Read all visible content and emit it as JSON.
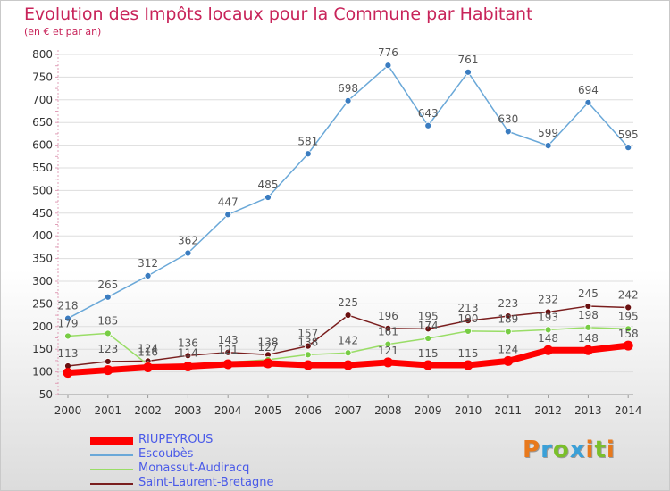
{
  "title": "Evolution des Impôts locaux pour la Commune par Habitant",
  "subtitle": "(en € et par an)",
  "brand": "Proxiti",
  "colors": {
    "title": "#c8245a",
    "legend_text": "#4a5ae8",
    "grid": "#dddddd",
    "axis": "#e0a0b8",
    "brand_letters": [
      "#e8791c",
      "#3aa0d8",
      "#7abf2a",
      "#3aa0d8",
      "#e8791c",
      "#7abf2a",
      "#e8791c"
    ]
  },
  "chart_data": {
    "type": "line",
    "x": [
      "2000",
      "2001",
      "2002",
      "2003",
      "2004",
      "2005",
      "2006",
      "2007",
      "2008",
      "2009",
      "2010",
      "2011",
      "2012",
      "2013",
      "2014"
    ],
    "ylim": [
      50,
      800
    ],
    "yticks": [
      50,
      100,
      150,
      200,
      250,
      300,
      350,
      400,
      450,
      500,
      550,
      600,
      650,
      700,
      750,
      800
    ],
    "grid": true,
    "legend_position": "bottom-left",
    "series": [
      {
        "name": "RIUPEYROUS",
        "color": "#ff0000",
        "width": 7,
        "marker_r": 5.5,
        "label_color": "#555555",
        "values": [
          98,
          104,
          110,
          112,
          117,
          119,
          115,
          115,
          121,
          115,
          115,
          124,
          148,
          148,
          158
        ],
        "labels": [
          null,
          null,
          null,
          null,
          null,
          null,
          null,
          null,
          "121",
          "115",
          "115",
          "124",
          "148",
          "148",
          "158"
        ]
      },
      {
        "name": "Escoubès",
        "color": "#6aa8d8",
        "width": 1.5,
        "marker_r": 3.5,
        "marker_color": "#3a7cc0",
        "label_color": "#555555",
        "values": [
          218,
          265,
          312,
          362,
          447,
          485,
          581,
          698,
          776,
          643,
          761,
          630,
          599,
          694,
          595
        ]
      },
      {
        "name": "Monassut-Audiracq",
        "color": "#99dd66",
        "width": 1.5,
        "marker_r": 3.5,
        "marker_color": "#77cc44",
        "label_color": "#555555",
        "values": [
          179,
          185,
          116,
          114,
          121,
          127,
          138,
          142,
          161,
          174,
          190,
          189,
          193,
          198,
          195
        ]
      },
      {
        "name": "Saint-Laurent-Bretagne",
        "color": "#7a1e1e",
        "width": 1.5,
        "marker_r": 3.5,
        "marker_color": "#6a1010",
        "label_color": "#555555",
        "values": [
          113,
          123,
          124,
          136,
          143,
          138,
          157,
          225,
          196,
          195,
          213,
          223,
          232,
          245,
          242
        ]
      }
    ]
  }
}
